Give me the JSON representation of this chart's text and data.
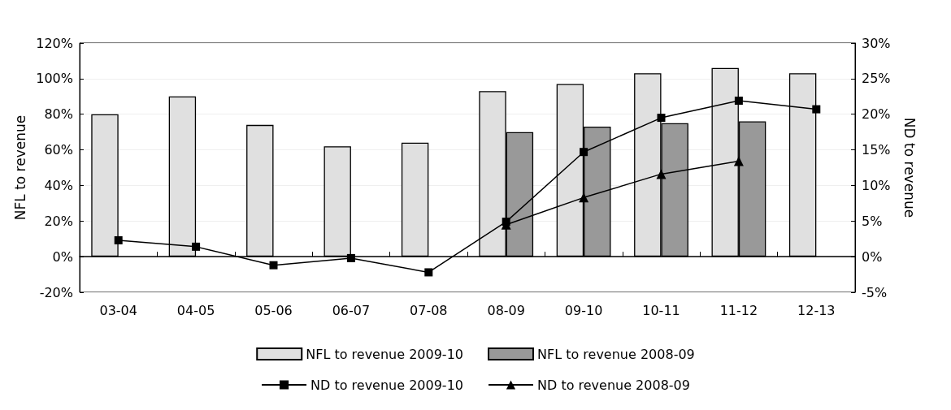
{
  "chart_data": {
    "type": "bar",
    "xlabel": null,
    "ylabel": "NFL to revenue",
    "y2label": "ND to revenue",
    "categories": [
      "03-04",
      "04-05",
      "05-06",
      "06-07",
      "07-08",
      "08-09",
      "09-10",
      "10-11",
      "11-12",
      "12-13"
    ],
    "series": [
      {
        "name": "NFL to revenue 2009-10",
        "color": "#e0e0e0",
        "values": [
          80,
          90,
          74,
          62,
          64,
          93,
          97,
          103,
          106,
          103
        ]
      },
      {
        "name": "NFL to revenue 2008-09",
        "color": "#999999",
        "values": [
          null,
          null,
          null,
          null,
          null,
          70,
          73,
          75,
          76,
          null
        ]
      },
      {
        "name": "ND to revenue 2009-10",
        "type": "line",
        "axis": "y2",
        "color": "#000000",
        "marker": "square",
        "values": [
          2.3,
          1.4,
          -1.2,
          -0.2,
          -2.2,
          4.9,
          14.7,
          19.5,
          21.9,
          20.7
        ]
      },
      {
        "name": "ND to revenue 2008-09",
        "type": "line",
        "axis": "y2",
        "color": "#000000",
        "marker": "triangle",
        "values": [
          null,
          null,
          null,
          null,
          null,
          4.5,
          8.3,
          11.6,
          13.4,
          null
        ]
      }
    ],
    "ylim": [
      -20,
      120
    ],
    "yticks": [
      {
        "value": -20,
        "label": "-20%"
      },
      {
        "value": 0,
        "label": "0%"
      },
      {
        "value": 20,
        "label": "20%"
      },
      {
        "value": 40,
        "label": "40%"
      },
      {
        "value": 60,
        "label": "60%"
      },
      {
        "value": 80,
        "label": "80%"
      },
      {
        "value": 100,
        "label": "100%"
      },
      {
        "value": 120,
        "label": "120%"
      }
    ],
    "y2lim": [
      -5,
      30
    ],
    "y2ticks": [
      {
        "value": -5,
        "label": "-5%"
      },
      {
        "value": 0,
        "label": "0%"
      },
      {
        "value": 5,
        "label": "5%"
      },
      {
        "value": 10,
        "label": "10%"
      },
      {
        "value": 15,
        "label": "15%"
      },
      {
        "value": 20,
        "label": "20%"
      },
      {
        "value": 25,
        "label": "25%"
      },
      {
        "value": 30,
        "label": "30%"
      }
    ],
    "grid": "y",
    "legend": "bottom"
  }
}
